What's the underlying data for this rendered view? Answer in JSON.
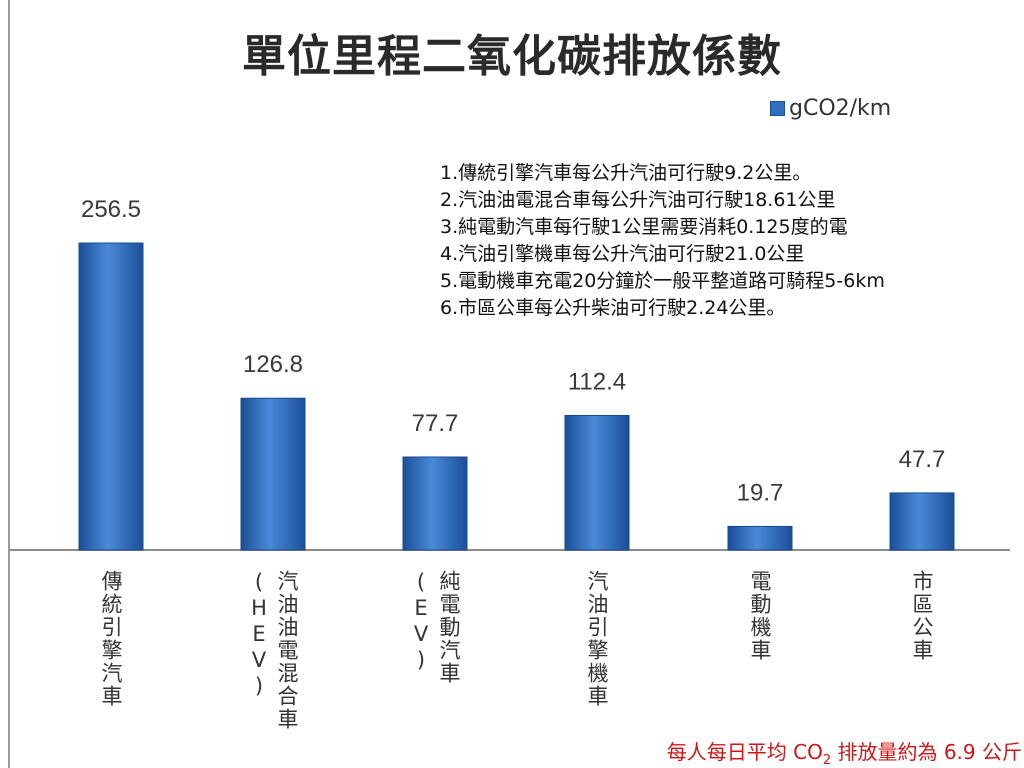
{
  "title": "單位里程二氧化碳排放係數",
  "legend": "gCO2/km",
  "notes": [
    "1.傳統引擎汽車每公升汽油可行駛9.2公里。",
    "2.汽油油電混合車每公升汽油可行駛18.61公里",
    "3.純電動汽車每行駛1公里需要消耗0.125度的電",
    "4.汽油引擎機車每公升汽油可行駛21.0公里",
    "5.電動機車充電20分鐘於一般平整道路可騎程5-6km",
    "6.市區公車每公升柴油可行駛2.24公里。"
  ],
  "footer": {
    "prefix": "每人每日平均 CO",
    "sub": "2",
    "suffix": " 排放量約為 6.9 公斤"
  },
  "colors": {
    "bar": "#2f6fc0",
    "bar_dark": "#1b4f98",
    "footer": "#d01515"
  },
  "chart_data": {
    "type": "bar",
    "categories": [
      "傳統引擎汽車",
      "汽油油電混合車(HEV)",
      "純電動汽車(EV)",
      "汽油引擎機車",
      "電動機車",
      "市區公車"
    ],
    "series": [
      {
        "name": "gCO2/km",
        "values": [
          256.5,
          126.8,
          77.7,
          112.4,
          19.7,
          47.7
        ]
      }
    ],
    "value_labels": [
      "256.5",
      "126.8",
      "77.7",
      "112.4",
      "19.7",
      "47.7"
    ],
    "title": "單位里程二氧化碳排放係數",
    "ylim": [
      0,
      256.5
    ],
    "grid": false,
    "legend_position": "top-right"
  }
}
